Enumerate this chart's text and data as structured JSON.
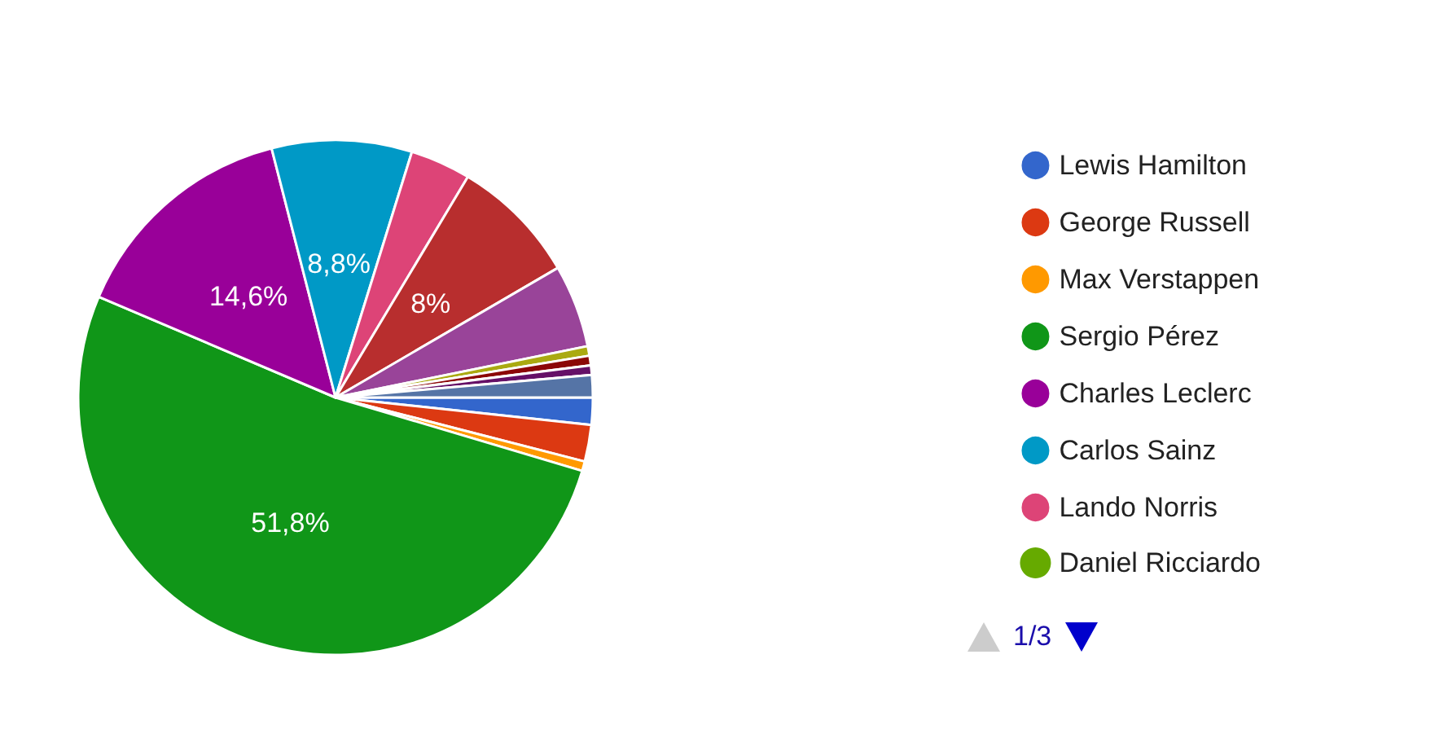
{
  "chart_data": {
    "type": "pie",
    "categories": [
      "Lewis Hamilton",
      "George Russell",
      "Max Verstappen",
      "Sergio Pérez",
      "Charles Leclerc",
      "Carlos Sainz",
      "Lando Norris",
      "Daniel Ricciardo",
      null,
      null,
      null,
      null,
      null,
      null
    ],
    "values": [
      1.7,
      2.3,
      0.6,
      51.8,
      14.6,
      8.8,
      3.8,
      0,
      8,
      5.2,
      0.6,
      0.6,
      0.6,
      1.4
    ],
    "colors": [
      "#3366cc",
      "#dc3912",
      "#ff9900",
      "#109618",
      "#990099",
      "#0099c6",
      "#dd4477",
      "#66aa00",
      "#b82e2e",
      "#994499",
      "#aaaa11",
      "#8b0707",
      "#651067",
      "#5574a6"
    ],
    "value_labels": [
      null,
      null,
      null,
      "51,8%",
      "14,6%",
      "8,8%",
      null,
      null,
      "8%",
      null,
      null,
      null,
      null,
      null
    ],
    "legend": "right",
    "annotations": [
      "1/3"
    ]
  }
}
